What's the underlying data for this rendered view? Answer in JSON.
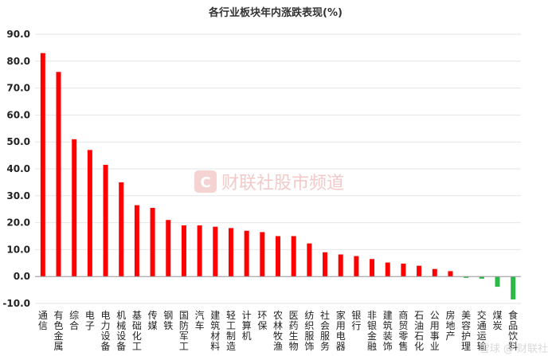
{
  "chart_data": {
    "type": "bar",
    "title": "各行业板块年内涨跌表现(%)",
    "xlabel": "",
    "ylabel": "",
    "ylim": [
      -10,
      90
    ],
    "yticks": [
      90.0,
      80.0,
      70.0,
      60.0,
      50.0,
      40.0,
      30.0,
      20.0,
      10.0,
      0.0,
      -10.0
    ],
    "ytick_labels": [
      "90.0",
      "80.0",
      "70.0",
      "60.0",
      "50.0",
      "40.0",
      "30.0",
      "20.0",
      "10.0",
      "0.0",
      "-10.0"
    ],
    "grid": true,
    "legend": "none",
    "categories": [
      "通信",
      "有色金属",
      "综合",
      "电子",
      "电力设备",
      "机械设备",
      "基础化工",
      "传媒",
      "钢铁",
      "国防军工",
      "汽车",
      "建筑材料",
      "轻工制造",
      "计算机",
      "环保",
      "农林牧渔",
      "医药生物",
      "纺织服饰",
      "社会服务",
      "家用电器",
      "银行",
      "非银金融",
      "建筑装饰",
      "商贸零售",
      "石油石化",
      "公用事业",
      "房地产",
      "美容护理",
      "交通运输",
      "煤炭",
      "食品饮料"
    ],
    "values": [
      83.0,
      76.0,
      51.0,
      47.0,
      41.5,
      35.0,
      26.5,
      25.5,
      21.0,
      19.0,
      19.0,
      18.5,
      18.0,
      17.0,
      16.5,
      15.0,
      15.0,
      12.3,
      9.0,
      8.2,
      7.6,
      6.5,
      5.2,
      4.8,
      4.0,
      2.8,
      2.0,
      -0.5,
      -0.8,
      -3.8,
      -8.5
    ],
    "positive_color": "#ff0000",
    "negative_color": "#2db84a"
  },
  "watermark": {
    "logo_letter": "C",
    "text": "财联社股市频道"
  },
  "corner_watermark": "雪球 @ 财联社"
}
